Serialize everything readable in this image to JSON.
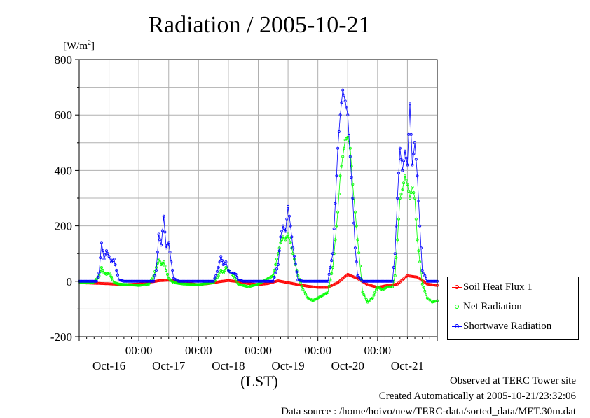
{
  "chart_data": {
    "type": "line",
    "title": "Radiation / 2005-10-21",
    "ylabel": "[W/m",
    "ylabel_sup": "2",
    "ylabel_close": "]",
    "xlabel": "(LST)",
    "ylim": [
      -200,
      800
    ],
    "xlim": [
      0,
      144
    ],
    "yticks": [
      -200,
      0,
      200,
      400,
      600,
      800
    ],
    "ytick_labels": [
      "-200",
      "0",
      "200",
      "400",
      "600",
      "800"
    ],
    "x_time_ticks": [
      24,
      48,
      72,
      96,
      120
    ],
    "x_time_labels": [
      "00:00",
      "00:00",
      "00:00",
      "00:00",
      "00:00"
    ],
    "x_date_centers": [
      12,
      36,
      60,
      84,
      108,
      132
    ],
    "x_date_labels": [
      "Oct-16",
      "Oct-17",
      "Oct-18",
      "Oct-19",
      "Oct-20",
      "Oct-21"
    ],
    "grid": true,
    "legend_position": "right",
    "series": [
      {
        "name": "Soil Heat Flux 1",
        "color": "#ff0000",
        "x": [
          0,
          6,
          12,
          18,
          24,
          28,
          32,
          36,
          40,
          44,
          48,
          52,
          56,
          60,
          64,
          68,
          72,
          76,
          80,
          84,
          88,
          92,
          96,
          100,
          104,
          108,
          112,
          116,
          120,
          124,
          128,
          132,
          136,
          140,
          144
        ],
        "values": [
          -5,
          -7,
          -9,
          -12,
          -10,
          -4,
          2,
          4,
          -2,
          -8,
          -12,
          -8,
          -2,
          3,
          -2,
          -8,
          -12,
          -8,
          2,
          -5,
          -12,
          -18,
          -22,
          -22,
          -5,
          25,
          10,
          -12,
          -22,
          -15,
          -10,
          20,
          15,
          -10,
          -15
        ]
      },
      {
        "name": "Net Radiation",
        "color": "#00ff00",
        "x": [
          0,
          6,
          8,
          9,
          10,
          11,
          12,
          13,
          14,
          16,
          20,
          24,
          28,
          30,
          31,
          32,
          33,
          34,
          35,
          36,
          38,
          42,
          48,
          54,
          56,
          57,
          58,
          59,
          60,
          61,
          62,
          64,
          66,
          68,
          72,
          78,
          80,
          81,
          82,
          83,
          84,
          85,
          86,
          88,
          90,
          92,
          94,
          96,
          100,
          102,
          103,
          104,
          105,
          106,
          107,
          108,
          109,
          110,
          112,
          114,
          116,
          118,
          120,
          122,
          124,
          126,
          127,
          128,
          129,
          130,
          131,
          132,
          133,
          134,
          135,
          136,
          138,
          140,
          142,
          144
        ],
        "values": [
          -5,
          -5,
          20,
          50,
          30,
          25,
          30,
          15,
          -5,
          -10,
          -12,
          -15,
          -10,
          20,
          50,
          80,
          60,
          70,
          40,
          10,
          -5,
          -10,
          -12,
          -5,
          20,
          40,
          30,
          50,
          40,
          30,
          20,
          -10,
          -15,
          -20,
          -10,
          20,
          100,
          140,
          160,
          150,
          170,
          140,
          100,
          20,
          -30,
          -60,
          -70,
          -60,
          -40,
          50,
          150,
          250,
          380,
          450,
          510,
          520,
          480,
          350,
          150,
          -40,
          -75,
          -60,
          -20,
          -30,
          -20,
          -20,
          20,
          150,
          300,
          330,
          380,
          350,
          300,
          340,
          300,
          150,
          -10,
          -60,
          -75,
          -70
        ]
      },
      {
        "name": "Shortwave Radiation",
        "color": "#0000ff",
        "x": [
          0,
          7,
          8,
          9,
          10,
          11,
          12,
          13,
          14,
          15,
          16,
          18,
          24,
          30,
          31,
          32,
          33,
          34,
          35,
          36,
          37,
          38,
          40,
          48,
          54,
          55,
          56,
          57,
          58,
          59,
          60,
          61,
          62,
          63,
          64,
          66,
          72,
          78,
          80,
          81,
          82,
          83,
          84,
          85,
          86,
          88,
          90,
          100,
          102,
          103,
          104,
          105,
          106,
          107,
          108,
          109,
          110,
          111,
          112,
          114,
          126,
          127,
          128,
          129,
          130,
          131,
          132,
          133,
          134,
          135,
          136,
          137,
          138,
          140,
          144
        ],
        "values": [
          0,
          0,
          30,
          140,
          80,
          110,
          90,
          70,
          80,
          40,
          5,
          0,
          0,
          0,
          40,
          170,
          130,
          235,
          120,
          140,
          70,
          10,
          0,
          0,
          0,
          20,
          50,
          90,
          60,
          70,
          40,
          30,
          30,
          25,
          5,
          0,
          0,
          0,
          60,
          160,
          200,
          180,
          270,
          200,
          120,
          5,
          0,
          0,
          100,
          280,
          480,
          600,
          690,
          650,
          600,
          450,
          300,
          120,
          20,
          0,
          0,
          100,
          300,
          480,
          400,
          470,
          420,
          640,
          420,
          500,
          380,
          200,
          40,
          0,
          0
        ]
      }
    ]
  },
  "footer": {
    "line1": "Observed at TERC Tower site",
    "line2": "Created Automatically at 2005-10-21/23:32:06",
    "line3": "Data source : /home/hoivo/new/TERC-data/sorted_data/MET.30m.dat"
  }
}
